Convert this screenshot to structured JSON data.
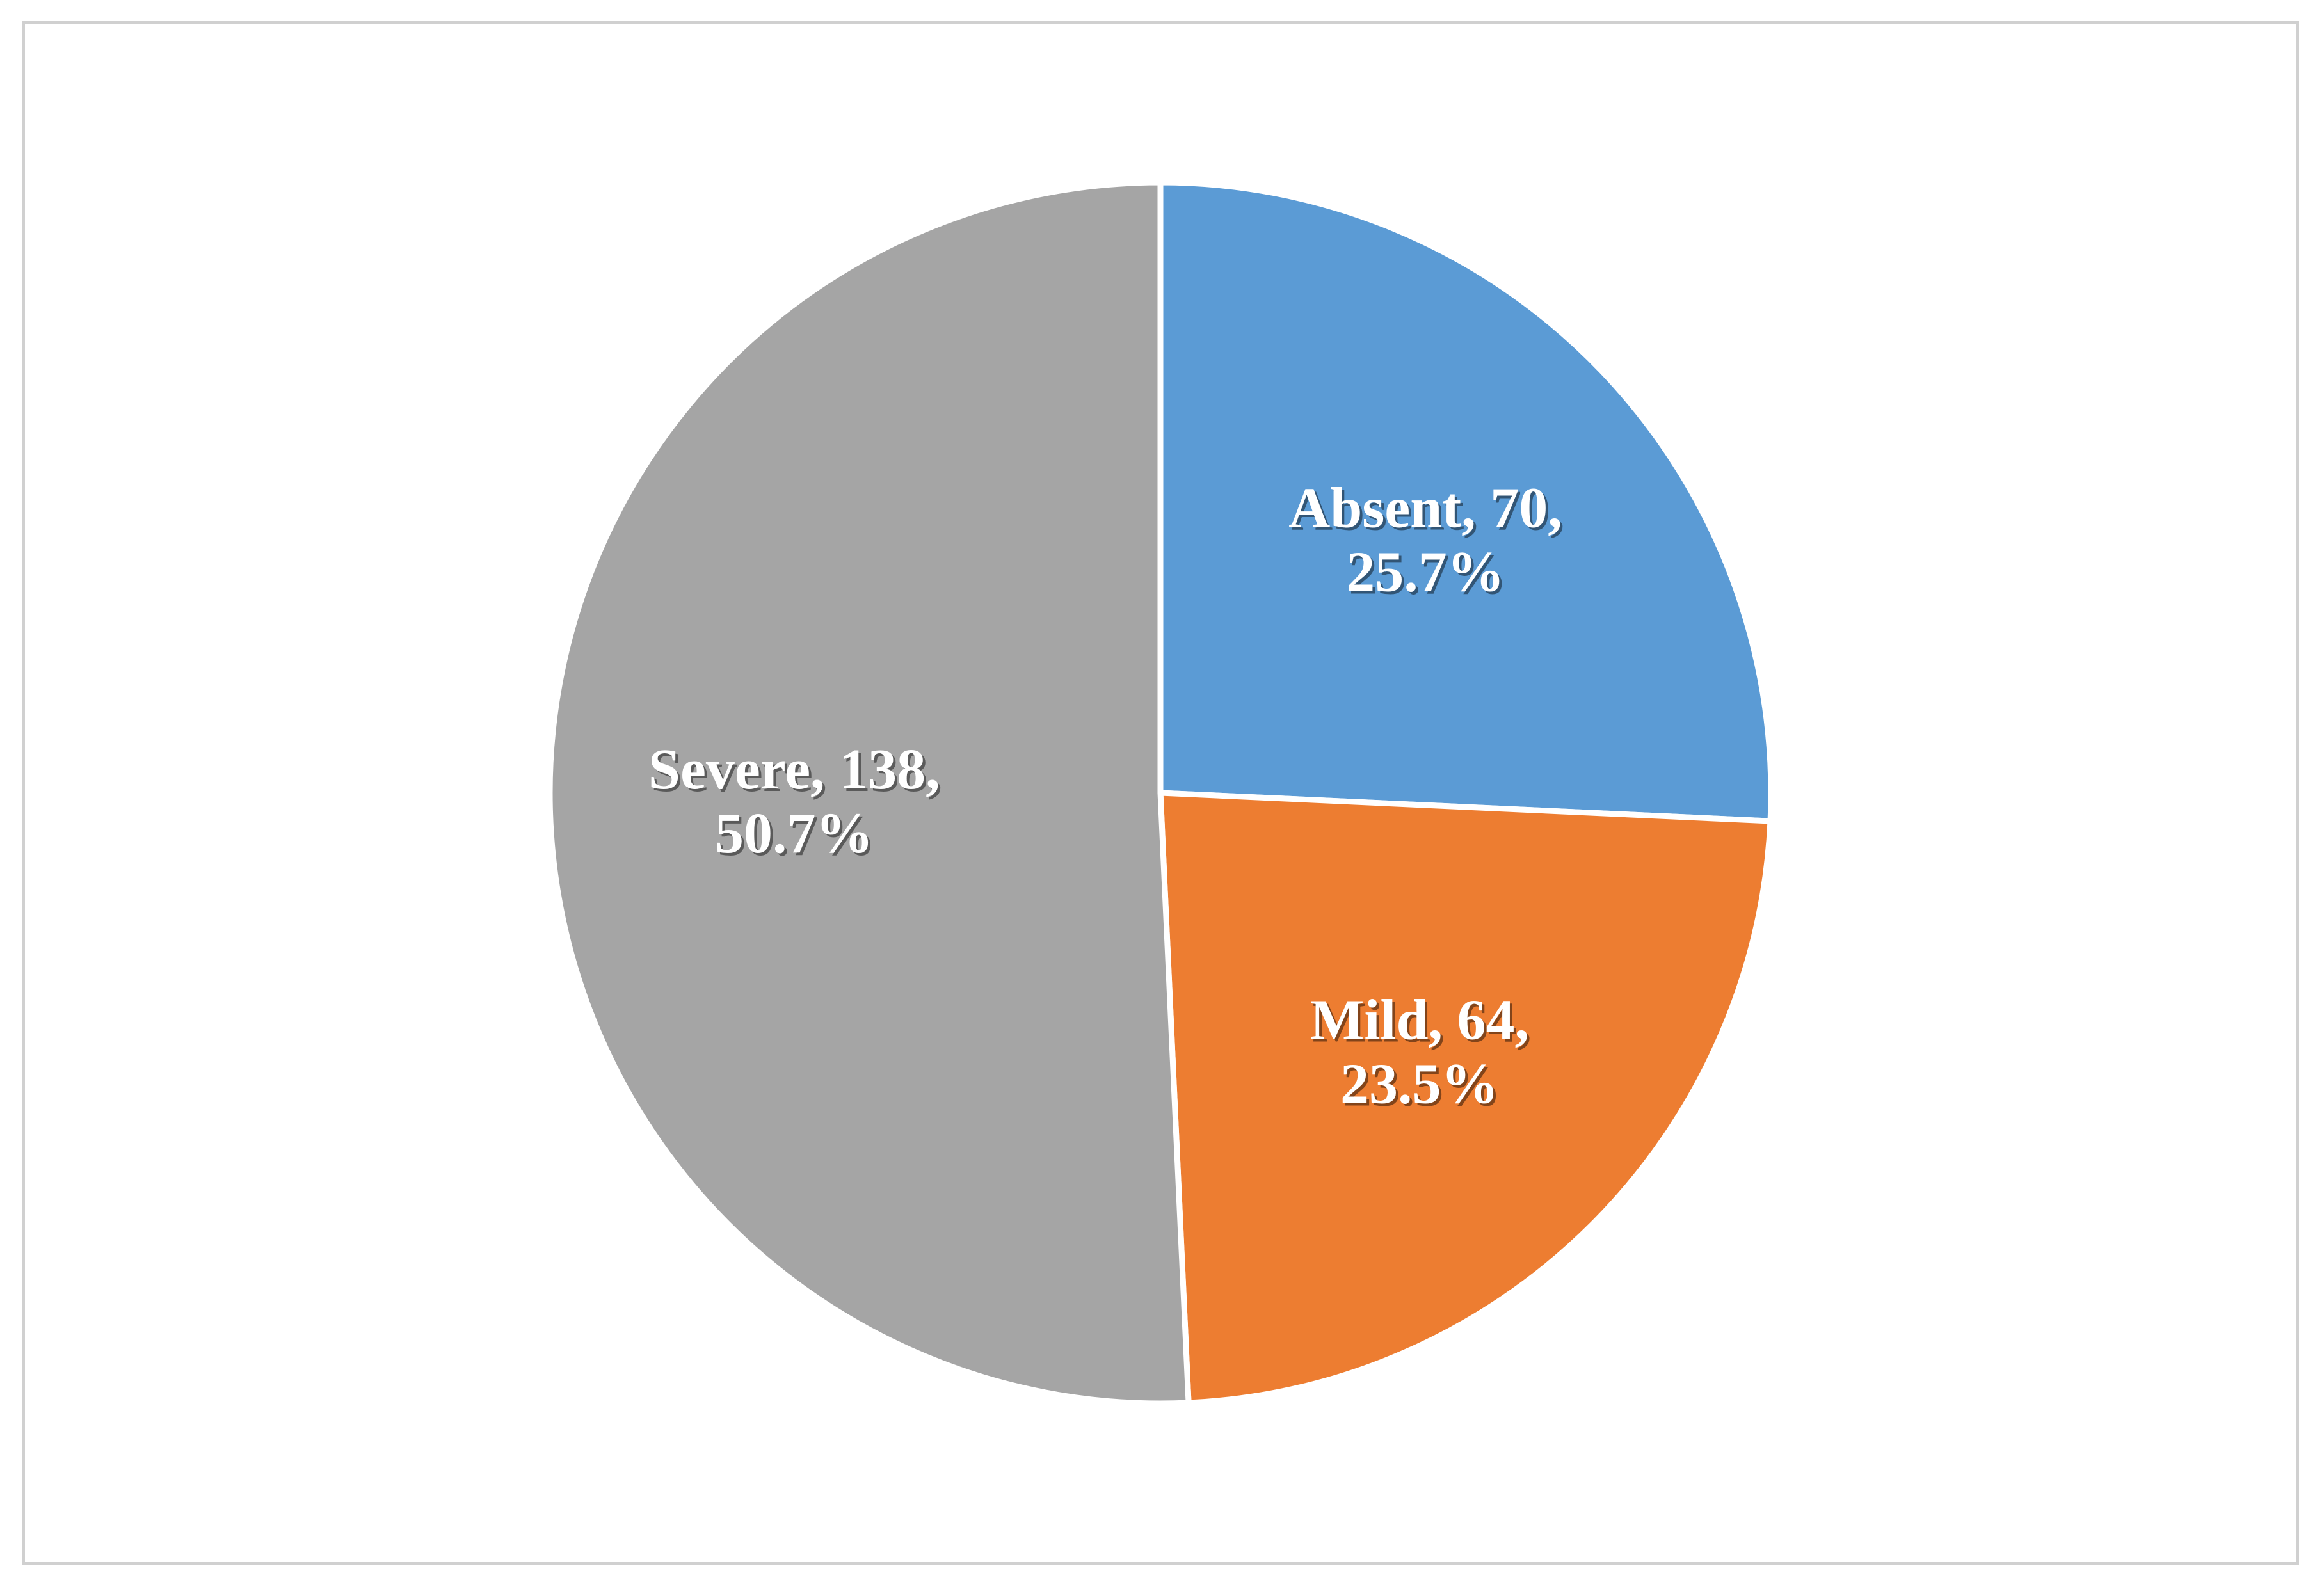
{
  "chart_data": {
    "type": "pie",
    "categories": [
      "Absent",
      "Mild",
      "Severe"
    ],
    "values": [
      70,
      64,
      138
    ],
    "percents": [
      25.7,
      23.5,
      50.7
    ],
    "labels": [
      [
        "Absent, 70,",
        "25.7%"
      ],
      [
        "Mild, 64,",
        "23.5%"
      ],
      [
        "Severe, 138,",
        "50.7%"
      ]
    ],
    "colors": [
      "#5b9bd5",
      "#ed7d31",
      "#a5a5a5"
    ],
    "start_angle": 0,
    "direction": "clockwise"
  }
}
